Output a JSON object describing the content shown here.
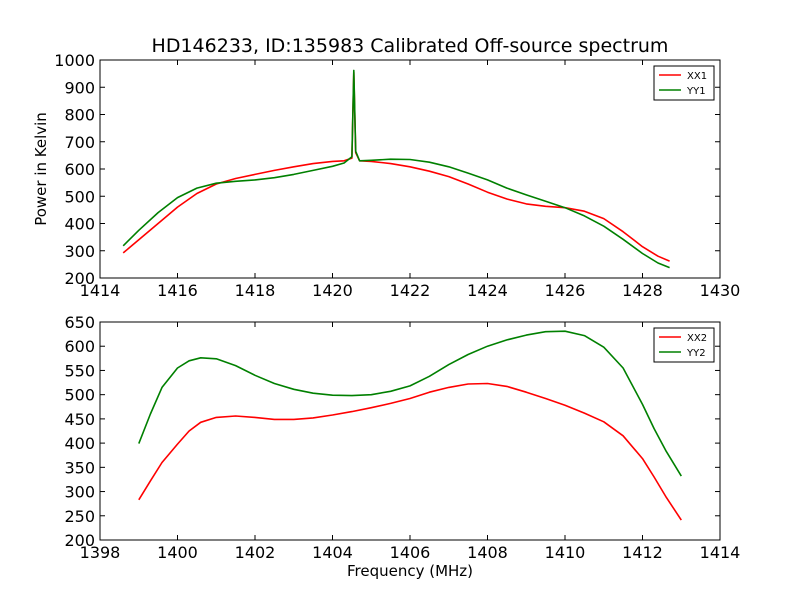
{
  "figure": {
    "title": "HD146233, ID:135983 Calibrated Off-source spectrum"
  },
  "chart_data": [
    {
      "type": "line",
      "title": "HD146233, ID:135983 Calibrated Off-source spectrum",
      "xlabel": "",
      "ylabel": "Power in Kelvin",
      "xlim": [
        1414,
        1430
      ],
      "ylim": [
        200,
        1000
      ],
      "xticks": [
        "1414",
        "1416",
        "1418",
        "1420",
        "1422",
        "1424",
        "1426",
        "1428",
        "1430"
      ],
      "yticks": [
        "200",
        "300",
        "400",
        "500",
        "600",
        "700",
        "800",
        "900",
        "1000"
      ],
      "grid": false,
      "legend_position": "top-right",
      "series": [
        {
          "name": "XX1",
          "color": "#ff0000",
          "x": [
            1414.6,
            1415.0,
            1415.5,
            1416.0,
            1416.5,
            1417.0,
            1417.5,
            1418.0,
            1418.5,
            1419.0,
            1419.5,
            1420.0,
            1420.3,
            1420.5,
            1420.55,
            1420.6,
            1420.7,
            1421.0,
            1421.5,
            1422.0,
            1422.5,
            1423.0,
            1423.5,
            1424.0,
            1424.5,
            1425.0,
            1425.5,
            1426.0,
            1426.5,
            1427.0,
            1427.5,
            1428.0,
            1428.4,
            1428.7
          ],
          "y": [
            292,
            340,
            400,
            460,
            510,
            545,
            565,
            580,
            595,
            608,
            620,
            628,
            630,
            640,
            955,
            660,
            630,
            628,
            620,
            608,
            592,
            572,
            545,
            515,
            490,
            472,
            463,
            458,
            445,
            418,
            370,
            315,
            280,
            262
          ]
        },
        {
          "name": "YY1",
          "color": "#008000",
          "x": [
            1414.6,
            1415.0,
            1415.5,
            1416.0,
            1416.5,
            1417.0,
            1417.5,
            1418.0,
            1418.5,
            1419.0,
            1419.5,
            1420.0,
            1420.3,
            1420.5,
            1420.55,
            1420.6,
            1420.7,
            1421.0,
            1421.5,
            1422.0,
            1422.5,
            1423.0,
            1423.5,
            1424.0,
            1424.5,
            1425.0,
            1425.5,
            1426.0,
            1426.5,
            1427.0,
            1427.5,
            1428.0,
            1428.4,
            1428.7
          ],
          "y": [
            318,
            375,
            440,
            495,
            530,
            548,
            555,
            560,
            568,
            580,
            595,
            610,
            622,
            645,
            962,
            665,
            630,
            632,
            636,
            635,
            625,
            608,
            585,
            560,
            530,
            505,
            482,
            458,
            428,
            390,
            342,
            290,
            255,
            238
          ]
        }
      ]
    },
    {
      "type": "line",
      "title": "",
      "xlabel": "Frequency (MHz)",
      "ylabel": "",
      "xlim": [
        1398,
        1414
      ],
      "ylim": [
        200,
        650
      ],
      "xticks": [
        "1398",
        "1400",
        "1402",
        "1404",
        "1406",
        "1408",
        "1410",
        "1412",
        "1414"
      ],
      "yticks": [
        "200",
        "250",
        "300",
        "350",
        "400",
        "450",
        "500",
        "550",
        "600",
        "650"
      ],
      "grid": false,
      "legend_position": "top-right",
      "series": [
        {
          "name": "XX2",
          "color": "#ff0000",
          "x": [
            1399.0,
            1399.3,
            1399.6,
            1400.0,
            1400.3,
            1400.6,
            1401.0,
            1401.5,
            1402.0,
            1402.5,
            1403.0,
            1403.5,
            1404.0,
            1404.5,
            1405.0,
            1405.5,
            1406.0,
            1406.5,
            1407.0,
            1407.5,
            1408.0,
            1408.5,
            1409.0,
            1409.5,
            1410.0,
            1410.5,
            1411.0,
            1411.5,
            1412.0,
            1412.3,
            1412.6,
            1413.0
          ],
          "y": [
            283,
            322,
            360,
            398,
            425,
            443,
            453,
            456,
            453,
            449,
            449,
            452,
            458,
            465,
            473,
            482,
            492,
            505,
            515,
            522,
            523,
            517,
            505,
            492,
            478,
            462,
            444,
            415,
            368,
            330,
            290,
            241
          ]
        },
        {
          "name": "YY2",
          "color": "#008000",
          "x": [
            1399.0,
            1399.3,
            1399.6,
            1400.0,
            1400.3,
            1400.6,
            1401.0,
            1401.5,
            1402.0,
            1402.5,
            1403.0,
            1403.5,
            1404.0,
            1404.5,
            1405.0,
            1405.5,
            1406.0,
            1406.5,
            1407.0,
            1407.5,
            1408.0,
            1408.5,
            1409.0,
            1409.5,
            1410.0,
            1410.5,
            1411.0,
            1411.5,
            1412.0,
            1412.3,
            1412.6,
            1413.0
          ],
          "y": [
            399,
            460,
            515,
            555,
            570,
            576,
            574,
            560,
            540,
            523,
            511,
            503,
            499,
            498,
            500,
            507,
            518,
            538,
            562,
            583,
            600,
            613,
            623,
            630,
            631,
            622,
            598,
            555,
            480,
            430,
            385,
            332
          ]
        }
      ]
    }
  ]
}
